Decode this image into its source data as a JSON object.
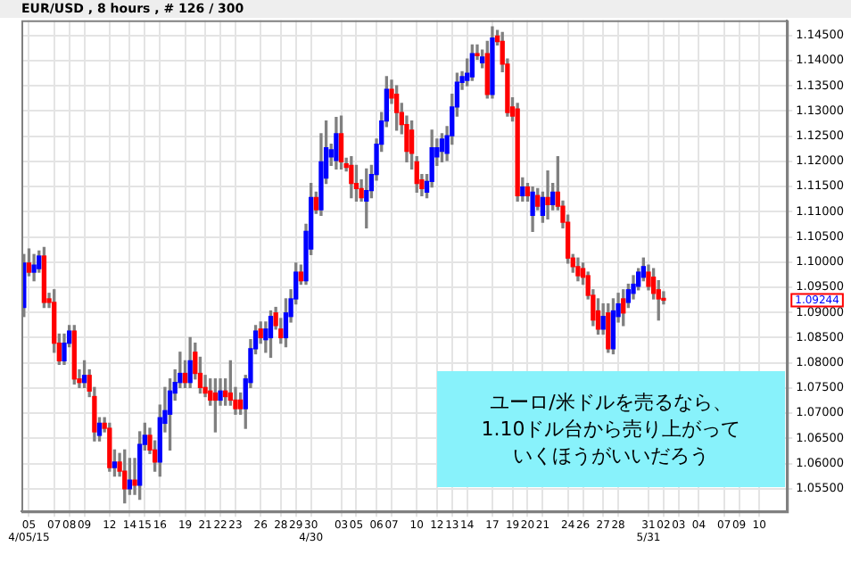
{
  "chart_data": {
    "type": "candlestick",
    "title": "EUR/USD , 8 hours , # 126 / 300",
    "categories": [
      null,
      "05\n4/05/15",
      null,
      null,
      null,
      null,
      "07",
      null,
      null,
      "08",
      null,
      null,
      "09",
      null,
      null,
      null,
      null,
      "12",
      null,
      null,
      null,
      "14",
      null,
      null,
      "15",
      null,
      null,
      "16",
      null,
      null,
      null,
      null,
      "19",
      null,
      null,
      null,
      "21",
      null,
      null,
      "22",
      null,
      null,
      "23",
      null,
      null,
      null,
      null,
      "26",
      null,
      null,
      null,
      "28",
      null,
      null,
      "29",
      null,
      null,
      "30\n4/30",
      null,
      null,
      null,
      null,
      null,
      "03",
      null,
      null,
      "05",
      null,
      null,
      null,
      "06",
      null,
      null,
      "07",
      null,
      null,
      null,
      null,
      "10",
      null,
      null,
      null,
      "12",
      null,
      null,
      "13",
      null,
      null,
      "14",
      null,
      null,
      null,
      null,
      "17",
      null,
      null,
      null,
      "19",
      null,
      null,
      "20",
      null,
      null,
      "21",
      null,
      null,
      null,
      null,
      "24",
      null,
      null,
      "26",
      null,
      null,
      null,
      "27",
      null,
      null,
      "28",
      null,
      null,
      null,
      null,
      null,
      "31\n5/31",
      null,
      null,
      "02",
      null,
      null,
      "03",
      null,
      null,
      null,
      "04",
      null,
      null,
      null,
      null,
      "07",
      null,
      null,
      "09",
      null,
      null,
      null,
      "10",
      null,
      null,
      null,
      null,
      null
    ],
    "ohlc": [
      [
        1.091,
        1.1015,
        1.0892,
        1.0998
      ],
      [
        1.0998,
        1.1026,
        1.0973,
        1.098
      ],
      [
        1.098,
        1.1015,
        1.0963,
        1.0994
      ],
      [
        1.0987,
        1.1022,
        1.098,
        1.1012
      ],
      [
        1.1012,
        1.1029,
        1.091,
        1.092
      ],
      [
        1.0927,
        1.0938,
        1.091,
        1.092
      ],
      [
        1.092,
        1.0945,
        1.0821,
        1.0839
      ],
      [
        1.0839,
        1.0857,
        1.0797,
        1.0804
      ],
      [
        1.0804,
        1.0857,
        1.0797,
        1.0839
      ],
      [
        1.0839,
        1.0874,
        1.0832,
        1.0863
      ],
      [
        1.0863,
        1.0874,
        1.0758,
        1.0768
      ],
      [
        1.0768,
        1.0786,
        1.0751,
        1.0761
      ],
      [
        1.0761,
        1.0804,
        1.0751,
        1.0775
      ],
      [
        1.0775,
        1.0786,
        1.0733,
        1.0744
      ],
      [
        1.0733,
        1.0751,
        1.0645,
        1.0663
      ],
      [
        1.0656,
        1.0691,
        1.0645,
        1.068
      ],
      [
        1.068,
        1.0691,
        1.0663,
        1.067
      ],
      [
        1.067,
        1.068,
        1.0585,
        1.0592
      ],
      [
        1.0592,
        1.0627,
        1.0575,
        1.0603
      ],
      [
        1.0603,
        1.062,
        1.0575,
        1.0585
      ],
      [
        1.0585,
        1.0627,
        1.0522,
        1.055
      ],
      [
        1.055,
        1.061,
        1.0539,
        1.0567
      ],
      [
        1.0567,
        1.061,
        1.0539,
        1.0557
      ],
      [
        1.0557,
        1.0663,
        1.0529,
        1.0638
      ],
      [
        1.0638,
        1.068,
        1.0627,
        1.0656
      ],
      [
        1.0656,
        1.067,
        1.062,
        1.0627
      ],
      [
        1.0627,
        1.0645,
        1.0585,
        1.0603
      ],
      [
        1.0603,
        1.0716,
        1.0575,
        1.0691
      ],
      [
        1.068,
        1.0751,
        1.0663,
        1.0705
      ],
      [
        1.0698,
        1.0768,
        1.0627,
        1.0744
      ],
      [
        1.074,
        1.0786,
        1.0726,
        1.0761
      ],
      [
        1.0761,
        1.0821,
        1.0751,
        1.0779
      ],
      [
        1.0779,
        1.0804,
        1.0751,
        1.0761
      ],
      [
        1.0761,
        1.085,
        1.0751,
        1.0804
      ],
      [
        1.0821,
        1.0839,
        1.0768,
        1.0779
      ],
      [
        1.0779,
        1.0811,
        1.074,
        1.0751
      ],
      [
        1.0751,
        1.0775,
        1.0733,
        1.074
      ],
      [
        1.0744,
        1.0768,
        1.0716,
        1.0726
      ],
      [
        1.074,
        1.0768,
        1.0663,
        1.0726
      ],
      [
        1.0726,
        1.0768,
        1.0716,
        1.0744
      ],
      [
        1.0744,
        1.0768,
        1.0716,
        1.0733
      ],
      [
        1.074,
        1.0804,
        1.0716,
        1.0726
      ],
      [
        1.0726,
        1.0751,
        1.0698,
        1.0709
      ],
      [
        1.0726,
        1.074,
        1.0698,
        1.0709
      ],
      [
        1.0709,
        1.0775,
        1.067,
        1.0768
      ],
      [
        1.0761,
        1.0846,
        1.0751,
        1.0828
      ],
      [
        1.0828,
        1.0874,
        1.0818,
        1.0863
      ],
      [
        1.0867,
        1.0881,
        1.0839,
        1.085
      ],
      [
        1.0846,
        1.0881,
        1.0821,
        1.0867
      ],
      [
        1.085,
        1.0903,
        1.0811,
        1.0892
      ],
      [
        1.0899,
        1.091,
        1.0867,
        1.0874
      ],
      [
        1.0867,
        1.0888,
        1.0839,
        1.085
      ],
      [
        1.085,
        1.0927,
        1.0832,
        1.0899
      ],
      [
        1.0892,
        1.0945,
        1.0881,
        1.0927
      ],
      [
        1.0927,
        1.0998,
        1.0917,
        1.098
      ],
      [
        1.098,
        1.0994,
        1.0956,
        1.0963
      ],
      [
        1.0963,
        1.1075,
        1.0956,
        1.1061
      ],
      [
        1.1026,
        1.1156,
        1.1015,
        1.1128
      ],
      [
        1.1128,
        1.1139,
        1.1097,
        1.1104
      ],
      [
        1.1104,
        1.1255,
        1.1093,
        1.1199
      ],
      [
        1.1167,
        1.128,
        1.1156,
        1.1227
      ],
      [
        1.1209,
        1.1234,
        1.1192,
        1.1223
      ],
      [
        1.1202,
        1.1287,
        1.1185,
        1.1255
      ],
      [
        1.1255,
        1.129,
        1.1185,
        1.1199
      ],
      [
        1.1195,
        1.1206,
        1.1181,
        1.1188
      ],
      [
        1.1192,
        1.1209,
        1.1128,
        1.1156
      ],
      [
        1.1156,
        1.1192,
        1.1121,
        1.1146
      ],
      [
        1.1146,
        1.1163,
        1.1121,
        1.1128
      ],
      [
        1.1121,
        1.1185,
        1.1068,
        1.1142
      ],
      [
        1.1142,
        1.1192,
        1.1128,
        1.1174
      ],
      [
        1.1174,
        1.1244,
        1.1163,
        1.1234
      ],
      [
        1.1234,
        1.1297,
        1.122,
        1.128
      ],
      [
        1.128,
        1.1368,
        1.1269,
        1.1343
      ],
      [
        1.1343,
        1.1361,
        1.1315,
        1.1326
      ],
      [
        1.1333,
        1.135,
        1.1262,
        1.1297
      ],
      [
        1.1297,
        1.1315,
        1.1255,
        1.1273
      ],
      [
        1.1273,
        1.129,
        1.1199,
        1.122
      ],
      [
        1.1262,
        1.128,
        1.1185,
        1.1216
      ],
      [
        1.1199,
        1.1209,
        1.1139,
        1.1156
      ],
      [
        1.1163,
        1.1174,
        1.1132,
        1.1146
      ],
      [
        1.1139,
        1.1174,
        1.1128,
        1.116
      ],
      [
        1.116,
        1.1262,
        1.1149,
        1.1227
      ],
      [
        1.1209,
        1.1244,
        1.1192,
        1.1227
      ],
      [
        1.122,
        1.1255,
        1.1199,
        1.1244
      ],
      [
        1.1216,
        1.1269,
        1.1202,
        1.1251
      ],
      [
        1.1251,
        1.1333,
        1.1234,
        1.1308
      ],
      [
        1.1308,
        1.1375,
        1.129,
        1.1357
      ],
      [
        1.1357,
        1.1378,
        1.1343,
        1.1368
      ],
      [
        1.1361,
        1.1403,
        1.135,
        1.1375
      ],
      [
        1.1368,
        1.1431,
        1.1361,
        1.1414
      ],
      [
        1.1414,
        1.1431,
        1.1403,
        1.141
      ],
      [
        1.1396,
        1.1421,
        1.1386,
        1.1407
      ],
      [
        1.1414,
        1.1438,
        1.1326,
        1.1333
      ],
      [
        1.1333,
        1.1467,
        1.1326,
        1.1445
      ],
      [
        1.1449,
        1.146,
        1.1431,
        1.1438
      ],
      [
        1.1438,
        1.1456,
        1.1378,
        1.1393
      ],
      [
        1.1393,
        1.1403,
        1.129,
        1.1297
      ],
      [
        1.1308,
        1.1326,
        1.128,
        1.129
      ],
      [
        1.1304,
        1.1315,
        1.1121,
        1.1132
      ],
      [
        1.1132,
        1.1167,
        1.1121,
        1.1149
      ],
      [
        1.1149,
        1.1156,
        1.1121,
        1.1132
      ],
      [
        1.1093,
        1.1149,
        1.1061,
        1.1139
      ],
      [
        1.1132,
        1.1146,
        1.1104,
        1.1111
      ],
      [
        1.1093,
        1.1139,
        1.1079,
        1.1128
      ],
      [
        1.1128,
        1.1181,
        1.1086,
        1.1114
      ],
      [
        1.1114,
        1.1156,
        1.1104,
        1.1139
      ],
      [
        1.1139,
        1.1209,
        1.1104,
        1.1111
      ],
      [
        1.1111,
        1.1121,
        1.1068,
        1.1079
      ],
      [
        1.1079,
        1.1093,
        1.0998,
        1.1008
      ],
      [
        1.1008,
        1.1015,
        1.098,
        1.0991
      ],
      [
        1.0991,
        1.1008,
        1.0963,
        1.0973
      ],
      [
        1.0987,
        1.0998,
        1.0956,
        1.097
      ],
      [
        1.0973,
        1.098,
        1.0927,
        1.0934
      ],
      [
        1.0934,
        1.0945,
        1.0874,
        1.0885
      ],
      [
        1.0903,
        1.0927,
        1.0857,
        1.0867
      ],
      [
        1.0867,
        1.0917,
        1.0857,
        1.0892
      ],
      [
        1.0899,
        1.0917,
        1.0821,
        1.0828
      ],
      [
        1.0828,
        1.0927,
        1.0818,
        1.0903
      ],
      [
        1.0892,
        1.0938,
        1.0881,
        1.0917
      ],
      [
        1.0927,
        1.0945,
        1.0874,
        1.0899
      ],
      [
        1.092,
        1.0956,
        1.091,
        1.0945
      ],
      [
        1.0938,
        1.0973,
        1.0927,
        1.0956
      ],
      [
        1.0952,
        1.0987,
        1.0945,
        1.098
      ],
      [
        1.097,
        1.1008,
        1.0963,
        1.0991
      ],
      [
        1.098,
        1.0994,
        1.0945,
        1.0952
      ],
      [
        1.097,
        1.0987,
        1.0927,
        1.0938
      ],
      [
        1.0945,
        1.0963,
        1.0885,
        1.0927
      ],
      [
        1.0927,
        1.0941,
        1.0917,
        1.09244
      ],
      null,
      null,
      null,
      null,
      null,
      null,
      null,
      null,
      null,
      null,
      null,
      null,
      null,
      null,
      null,
      null,
      null,
      null,
      null,
      null,
      null,
      null,
      null,
      null
    ],
    "colors": [
      "#0000ff",
      "#ff0000",
      "#0000ff",
      "#0000ff",
      "#ff0000",
      "#ff0000",
      "#ff0000",
      "#ff0000",
      "#0000ff",
      "#0000ff",
      "#ff0000",
      "#ff0000",
      "#0000ff",
      "#ff0000",
      "#ff0000",
      "#0000ff",
      "#ff0000",
      "#ff0000",
      "#0000ff",
      "#ff0000",
      "#ff0000",
      "#0000ff",
      "#ff0000",
      "#0000ff",
      "#0000ff",
      "#ff0000",
      "#ff0000",
      "#0000ff",
      "#0000ff",
      "#0000ff",
      "#0000ff",
      "#0000ff",
      "#ff0000",
      "#0000ff",
      "#ff0000",
      "#ff0000",
      "#ff0000",
      "#ff0000",
      "#ff0000",
      "#0000ff",
      "#ff0000",
      "#ff0000",
      "#ff0000",
      "#ff0000",
      "#0000ff",
      "#0000ff",
      "#0000ff",
      "#ff0000",
      "#0000ff",
      "#0000ff",
      "#ff0000",
      "#ff0000",
      "#0000ff",
      "#0000ff",
      "#0000ff",
      "#ff0000",
      "#0000ff",
      "#0000ff",
      "#ff0000",
      "#0000ff",
      "#0000ff",
      "#0000ff",
      "#0000ff",
      "#ff0000",
      "#ff0000",
      "#ff0000",
      "#ff0000",
      "#ff0000",
      "#0000ff",
      "#0000ff",
      "#0000ff",
      "#0000ff",
      "#0000ff",
      "#ff0000",
      "#ff0000",
      "#ff0000",
      "#ff0000",
      "#ff0000",
      "#ff0000",
      "#ff0000",
      "#0000ff",
      "#0000ff",
      "#0000ff",
      "#0000ff",
      "#0000ff",
      "#0000ff",
      "#0000ff",
      "#0000ff",
      "#0000ff",
      "#0000ff",
      "#ff0000",
      "#0000ff",
      "#ff0000",
      "#0000ff",
      "#ff0000",
      "#ff0000",
      "#ff0000",
      "#ff0000",
      "#ff0000",
      "#0000ff",
      "#ff0000",
      "#0000ff",
      "#ff0000",
      "#0000ff",
      "#ff0000",
      "#0000ff",
      "#ff0000",
      "#ff0000",
      "#ff0000",
      "#ff0000",
      "#ff0000",
      "#ff0000",
      "#ff0000",
      "#ff0000",
      "#ff0000",
      "#0000ff",
      "#ff0000",
      "#0000ff",
      "#0000ff",
      "#ff0000",
      "#0000ff",
      "#0000ff",
      "#0000ff",
      "#0000ff",
      "#ff0000",
      "#ff0000",
      "#ff0000",
      "#ff0000",
      null,
      null,
      null,
      null,
      null,
      null,
      null,
      null,
      null,
      null,
      null,
      null,
      null,
      null,
      null,
      null,
      null,
      null,
      null,
      null,
      null,
      null,
      null,
      null
    ],
    "ylim": [
      1.0505,
      1.148
    ],
    "yticks": [
      {
        "value": 1.055,
        "label": "1.05500"
      },
      {
        "value": 1.06,
        "label": "1.06000"
      },
      {
        "value": 1.065,
        "label": "1.06500"
      },
      {
        "value": 1.07,
        "label": "1.07000"
      },
      {
        "value": 1.075,
        "label": "1.07500"
      },
      {
        "value": 1.08,
        "label": "1.08000"
      },
      {
        "value": 1.085,
        "label": "1.08500"
      },
      {
        "value": 1.09,
        "label": "1.09000"
      },
      {
        "value": 1.095,
        "label": "1.09500"
      },
      {
        "value": 1.1,
        "label": "1.10000"
      },
      {
        "value": 1.105,
        "label": "1.10500"
      },
      {
        "value": 1.11,
        "label": "1.11000"
      },
      {
        "value": 1.115,
        "label": "1.11500"
      },
      {
        "value": 1.12,
        "label": "1.12000"
      },
      {
        "value": 1.125,
        "label": "1.12500"
      },
      {
        "value": 1.13,
        "label": "1.13000"
      },
      {
        "value": 1.135,
        "label": "1.13500"
      },
      {
        "value": 1.14,
        "label": "1.14000"
      },
      {
        "value": 1.145,
        "label": "1.14500"
      }
    ],
    "grid": true,
    "annotations": [
      "1.09244",
      "ユーロ/米ドルを売るなら、",
      "1.10ドル台から売り上がって",
      "いくほうがいいだろう"
    ]
  }
}
